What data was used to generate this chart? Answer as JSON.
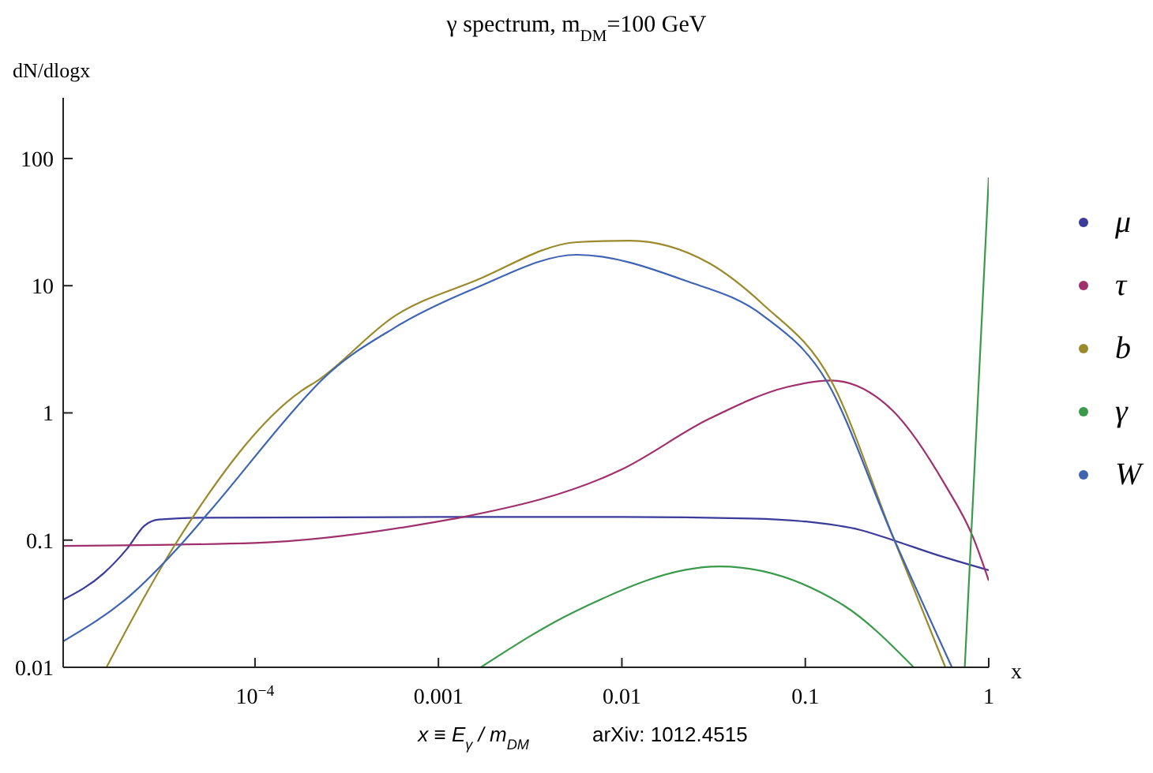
{
  "chart_data": {
    "type": "line",
    "title": "γ spectrum, m$_{DM}$=100 GeV",
    "ylabel": "dN/dlogx",
    "xlabel": "x",
    "annotations": [
      "x ≡ E$_{γ}$ / m$_{DM}$",
      "arXiv:  1012.4515"
    ],
    "log": "xy",
    "xlim": [
      9e-06,
      1
    ],
    "ylim": [
      0.01,
      300
    ],
    "xticks": [
      {
        "value": 0.0001,
        "label": "10$^{−4}$"
      },
      0.001,
      0.01,
      0.1,
      1
    ],
    "yticks": [
      0.01,
      0.1,
      1,
      10,
      100
    ],
    "grid": false,
    "legend": "right",
    "series": [
      {
        "name": "μ",
        "color": "#3b3b9a",
        "x": [
          9e-06,
          1.5e-05,
          2e-05,
          2.5e-05,
          3e-05,
          5e-05,
          0.001,
          0.01,
          0.05,
          0.1,
          0.2,
          0.3,
          0.5,
          1
        ],
        "values": [
          0.034,
          0.055,
          0.085,
          0.13,
          0.145,
          0.15,
          0.152,
          0.152,
          0.148,
          0.14,
          0.12,
          0.1,
          0.078,
          0.058
        ]
      },
      {
        "name": "τ",
        "color": "#a0306c",
        "x": [
          9e-06,
          0.0001,
          0.001,
          0.0013,
          0.01,
          0.03,
          0.08,
          0.138,
          0.3,
          0.58,
          0.82,
          1
        ],
        "values": [
          0.09,
          0.095,
          0.14,
          0.15,
          0.36,
          0.9,
          1.6,
          1.8,
          1.04,
          0.27,
          0.106,
          0.048
        ]
      },
      {
        "name": "b",
        "color": "#9a8a2c",
        "x": [
          1.55e-05,
          3.8e-05,
          0.00018,
          0.00022,
          0.00058,
          0.0016,
          0.0057,
          0.011,
          0.03,
          0.059,
          0.138,
          0.3,
          0.58
        ],
        "values": [
          0.01,
          0.1,
          1.5,
          1.8,
          5.8,
          11,
          22,
          22.6,
          15,
          7.1,
          1.8,
          0.107,
          0.01
        ]
      },
      {
        "name": "γ",
        "color": "#3a9a4a",
        "x": [
          0.0017,
          0.0057,
          0.034,
          0.16,
          0.39,
          0.6,
          0.74,
          1
        ],
        "values": [
          0.01,
          0.028,
          0.062,
          0.031,
          0.01,
          null,
          0.01,
          71
        ]
      },
      {
        "name": "W",
        "color": "#3f64b4",
        "x": [
          9e-06,
          2.1e-05,
          3.8e-05,
          5.7e-05,
          0.0002,
          0.00023,
          0.00058,
          0.0016,
          0.0057,
          0.022,
          0.059,
          0.13,
          0.3,
          0.63
        ],
        "values": [
          0.016,
          0.037,
          0.087,
          0.17,
          1.46,
          1.8,
          4.7,
          9.6,
          17.5,
          11,
          5.8,
          1.8,
          0.107,
          0.01
        ]
      }
    ]
  }
}
